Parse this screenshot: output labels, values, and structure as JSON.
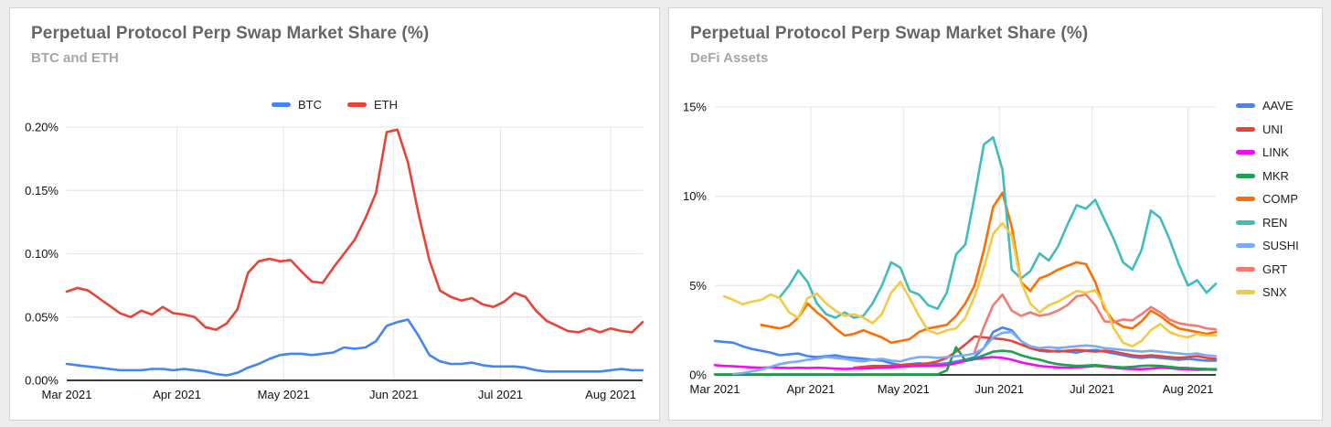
{
  "window": {
    "background_color": "#ececec",
    "panel_border_color": "#d5d5d5",
    "title_color": "#666666",
    "subtitle_color": "#a6a6a6",
    "gridline_color": "#e4e4e4"
  },
  "chart_data": [
    {
      "type": "line",
      "title": "Perpetual Protocol Perp Swap Market Share (%)",
      "subtitle": "BTC and ETH",
      "legend_position": "top-center",
      "grid": true,
      "x_unit": "days since Mar 1 2021",
      "ylim": [
        0,
        0.2
      ],
      "y_ticks": [
        {
          "value": 0.0,
          "label": "0.00%"
        },
        {
          "value": 0.05,
          "label": "0.05%"
        },
        {
          "value": 0.1,
          "label": "0.10%"
        },
        {
          "value": 0.15,
          "label": "0.15%"
        },
        {
          "value": 0.2,
          "label": "0.20%"
        }
      ],
      "x_ticks": [
        {
          "day": 0,
          "label": "Mar 2021"
        },
        {
          "day": 31,
          "label": "Apr 2021"
        },
        {
          "day": 61,
          "label": "May 2021"
        },
        {
          "day": 92,
          "label": "Jun 2021"
        },
        {
          "day": 122,
          "label": "Jul 2021"
        },
        {
          "day": 153,
          "label": "Aug 2021"
        }
      ],
      "x": [
        0,
        3,
        6,
        9,
        12,
        15,
        18,
        21,
        24,
        27,
        30,
        33,
        36,
        39,
        42,
        45,
        48,
        51,
        54,
        57,
        60,
        63,
        66,
        69,
        72,
        75,
        78,
        81,
        84,
        87,
        90,
        93,
        96,
        99,
        102,
        105,
        108,
        111,
        114,
        117,
        120,
        123,
        126,
        129,
        132,
        135,
        138,
        141,
        144,
        147,
        150,
        153,
        156,
        159,
        162
      ],
      "series": [
        {
          "name": "BTC",
          "color": "#4285F4",
          "values": [
            0.013,
            0.012,
            0.011,
            0.01,
            0.009,
            0.008,
            0.008,
            0.008,
            0.009,
            0.009,
            0.008,
            0.009,
            0.008,
            0.007,
            0.005,
            0.004,
            0.006,
            0.01,
            0.013,
            0.017,
            0.02,
            0.021,
            0.021,
            0.02,
            0.021,
            0.022,
            0.026,
            0.025,
            0.026,
            0.031,
            0.043,
            0.046,
            0.048,
            0.035,
            0.02,
            0.015,
            0.013,
            0.013,
            0.014,
            0.012,
            0.011,
            0.011,
            0.011,
            0.01,
            0.008,
            0.007,
            0.007,
            0.007,
            0.007,
            0.007,
            0.007,
            0.008,
            0.009,
            0.008,
            0.008
          ]
        },
        {
          "name": "ETH",
          "color": "#EA4335",
          "values": [
            0.07,
            0.073,
            0.071,
            0.065,
            0.059,
            0.053,
            0.05,
            0.055,
            0.052,
            0.058,
            0.053,
            0.052,
            0.05,
            0.042,
            0.04,
            0.045,
            0.056,
            0.085,
            0.094,
            0.096,
            0.094,
            0.095,
            0.086,
            0.078,
            0.077,
            0.089,
            0.1,
            0.111,
            0.128,
            0.148,
            0.196,
            0.198,
            0.172,
            0.131,
            0.095,
            0.071,
            0.066,
            0.063,
            0.065,
            0.06,
            0.058,
            0.062,
            0.069,
            0.066,
            0.055,
            0.047,
            0.043,
            0.039,
            0.038,
            0.041,
            0.038,
            0.041,
            0.039,
            0.038,
            0.046
          ]
        }
      ]
    },
    {
      "type": "line",
      "title": "Perpetual Protocol Perp Swap Market Share (%)",
      "subtitle": "DeFi Assets",
      "legend_position": "right",
      "grid": true,
      "x_unit": "days since Mar 1 2021",
      "ylim": [
        0,
        15
      ],
      "y_ticks": [
        {
          "value": 0,
          "label": "0%"
        },
        {
          "value": 5,
          "label": "5%"
        },
        {
          "value": 10,
          "label": "10%"
        },
        {
          "value": 15,
          "label": "15%"
        }
      ],
      "x_ticks": [
        {
          "day": 0,
          "label": "Mar 2021"
        },
        {
          "day": 31,
          "label": "Apr 2021"
        },
        {
          "day": 61,
          "label": "May 2021"
        },
        {
          "day": 92,
          "label": "Jun 2021"
        },
        {
          "day": 122,
          "label": "Jul 2021"
        },
        {
          "day": 153,
          "label": "Aug 2021"
        }
      ],
      "x": [
        0,
        3,
        6,
        9,
        12,
        15,
        18,
        21,
        24,
        27,
        30,
        33,
        36,
        39,
        42,
        45,
        48,
        51,
        54,
        57,
        60,
        63,
        66,
        69,
        72,
        75,
        78,
        81,
        84,
        87,
        90,
        93,
        96,
        99,
        102,
        105,
        108,
        111,
        114,
        117,
        120,
        123,
        126,
        129,
        132,
        135,
        138,
        141,
        144,
        147,
        150,
        153,
        156,
        159,
        162
      ],
      "series": [
        {
          "name": "AAVE",
          "color": "#4285F4",
          "values": [
            1.9,
            1.85,
            1.8,
            1.6,
            1.45,
            1.35,
            1.25,
            1.1,
            1.15,
            1.2,
            1.05,
            1.0,
            1.05,
            1.1,
            1.0,
            0.95,
            0.9,
            0.85,
            0.8,
            0.65,
            0.55,
            0.6,
            0.65,
            0.6,
            0.6,
            0.65,
            0.75,
            0.85,
            1.0,
            1.5,
            2.4,
            2.65,
            2.5,
            1.9,
            1.5,
            1.35,
            1.3,
            1.35,
            1.3,
            1.25,
            1.35,
            1.4,
            1.3,
            1.2,
            1.1,
            1.0,
            0.95,
            1.0,
            0.95,
            0.9,
            0.85,
            0.9,
            0.85,
            0.8,
            0.8
          ]
        },
        {
          "name": "UNI",
          "color": "#EA4335",
          "values": [
            null,
            null,
            null,
            null,
            null,
            null,
            null,
            null,
            null,
            null,
            null,
            null,
            null,
            null,
            null,
            0.4,
            0.45,
            0.5,
            0.5,
            0.5,
            0.55,
            0.6,
            0.6,
            0.65,
            0.75,
            0.95,
            1.3,
            1.7,
            2.15,
            2.1,
            2.05,
            2.0,
            1.9,
            1.7,
            1.5,
            1.4,
            1.35,
            1.3,
            1.35,
            1.4,
            1.35,
            1.3,
            1.35,
            1.3,
            1.2,
            1.1,
            1.05,
            1.1,
            1.05,
            1.0,
            0.95,
            1.0,
            1.05,
            0.95,
            0.9
          ]
        },
        {
          "name": "LINK",
          "color": "#F00DF0",
          "values": [
            0.55,
            0.5,
            0.48,
            0.45,
            0.42,
            0.4,
            0.42,
            0.4,
            0.38,
            0.4,
            0.38,
            0.4,
            0.38,
            0.35,
            0.33,
            0.35,
            0.35,
            0.38,
            0.4,
            0.42,
            0.45,
            0.48,
            0.5,
            0.5,
            0.52,
            0.55,
            0.65,
            0.78,
            0.88,
            0.95,
            1.0,
            0.95,
            0.85,
            0.7,
            0.6,
            0.5,
            0.45,
            0.42,
            0.4,
            0.42,
            0.45,
            0.5,
            0.45,
            0.4,
            0.35,
            0.33,
            0.32,
            0.35,
            0.4,
            0.38,
            0.33,
            0.3,
            0.28,
            0.3,
            0.28
          ]
        },
        {
          "name": "MKR",
          "color": "#1FA050",
          "values": [
            0.03,
            0.03,
            0.03,
            0.03,
            0.03,
            0.03,
            0.03,
            0.03,
            0.03,
            0.03,
            0.03,
            0.03,
            0.03,
            0.03,
            0.03,
            0.03,
            0.03,
            0.03,
            0.03,
            0.03,
            0.03,
            0.03,
            0.03,
            0.03,
            0.03,
            0.25,
            1.55,
            0.8,
            0.9,
            1.1,
            1.3,
            1.35,
            1.3,
            1.1,
            0.95,
            0.85,
            0.7,
            0.6,
            0.55,
            0.5,
            0.52,
            0.55,
            0.5,
            0.45,
            0.42,
            0.45,
            0.5,
            0.52,
            0.5,
            0.45,
            0.4,
            0.38,
            0.35,
            0.33,
            0.32
          ]
        },
        {
          "name": "COMP",
          "color": "#FF6D01",
          "values": [
            null,
            null,
            null,
            null,
            null,
            2.8,
            2.7,
            2.6,
            2.75,
            3.2,
            4.0,
            3.5,
            3.1,
            2.6,
            2.2,
            2.3,
            2.5,
            2.3,
            2.1,
            1.8,
            1.9,
            2.0,
            2.4,
            2.6,
            2.7,
            2.8,
            3.3,
            4.0,
            5.0,
            7.0,
            9.4,
            10.2,
            8.3,
            5.2,
            4.7,
            5.4,
            5.6,
            5.9,
            6.1,
            6.3,
            6.2,
            5.2,
            3.7,
            3.0,
            2.7,
            2.6,
            3.0,
            3.6,
            3.3,
            2.9,
            2.6,
            2.5,
            2.4,
            2.3,
            2.4
          ]
        },
        {
          "name": "REN",
          "color": "#3FBDBD",
          "values": [
            null,
            null,
            null,
            null,
            null,
            null,
            null,
            4.35,
            5.0,
            5.85,
            5.2,
            4.0,
            3.4,
            3.2,
            3.5,
            3.2,
            3.3,
            4.0,
            5.0,
            6.3,
            6.0,
            4.7,
            4.5,
            3.9,
            3.7,
            4.6,
            6.75,
            7.3,
            10.0,
            12.9,
            13.3,
            11.5,
            5.9,
            5.4,
            5.8,
            6.8,
            6.4,
            7.2,
            8.4,
            9.5,
            9.3,
            9.8,
            8.7,
            7.6,
            6.3,
            5.9,
            7.0,
            9.2,
            8.8,
            7.6,
            6.2,
            5.0,
            5.3,
            4.6,
            5.1
          ]
        },
        {
          "name": "SUSHI",
          "color": "#7BAAF7",
          "values": [
            null,
            null,
            0.05,
            0.1,
            0.2,
            0.3,
            0.45,
            0.6,
            0.7,
            0.75,
            0.85,
            0.9,
            1.0,
            0.95,
            0.9,
            0.8,
            0.75,
            0.85,
            0.9,
            0.8,
            0.75,
            0.9,
            1.0,
            1.0,
            0.95,
            1.0,
            1.05,
            1.1,
            1.2,
            1.5,
            2.1,
            2.35,
            2.4,
            1.9,
            1.6,
            1.5,
            1.55,
            1.5,
            1.55,
            1.6,
            1.65,
            1.6,
            1.5,
            1.45,
            1.4,
            1.35,
            1.3,
            1.35,
            1.3,
            1.25,
            1.2,
            1.15,
            1.2,
            1.1,
            1.05
          ]
        },
        {
          "name": "GRT",
          "color": "#F07B72",
          "values": [
            null,
            null,
            null,
            null,
            null,
            null,
            null,
            null,
            null,
            null,
            null,
            null,
            null,
            null,
            null,
            null,
            null,
            null,
            null,
            null,
            null,
            null,
            null,
            null,
            null,
            null,
            null,
            null,
            1.3,
            2.7,
            3.9,
            4.5,
            3.6,
            3.3,
            3.5,
            3.3,
            3.4,
            3.6,
            3.9,
            4.4,
            4.5,
            3.9,
            3.0,
            2.95,
            3.1,
            3.05,
            3.4,
            3.8,
            3.5,
            3.1,
            2.9,
            2.8,
            2.75,
            2.6,
            2.55
          ]
        },
        {
          "name": "SNX",
          "color": "#F7C843",
          "values": [
            null,
            4.4,
            4.2,
            3.95,
            4.1,
            4.2,
            4.5,
            4.3,
            3.5,
            3.2,
            4.3,
            4.55,
            4.0,
            3.6,
            3.3,
            3.4,
            3.2,
            2.9,
            3.4,
            4.6,
            5.2,
            4.3,
            3.3,
            2.5,
            2.3,
            2.5,
            2.6,
            3.2,
            4.4,
            6.0,
            7.9,
            8.5,
            7.8,
            5.2,
            4.0,
            3.5,
            3.9,
            4.1,
            4.4,
            4.7,
            4.6,
            4.75,
            3.9,
            2.6,
            1.8,
            1.6,
            1.9,
            2.5,
            2.85,
            2.4,
            2.2,
            2.1,
            2.3,
            2.2,
            2.2
          ]
        }
      ]
    }
  ]
}
